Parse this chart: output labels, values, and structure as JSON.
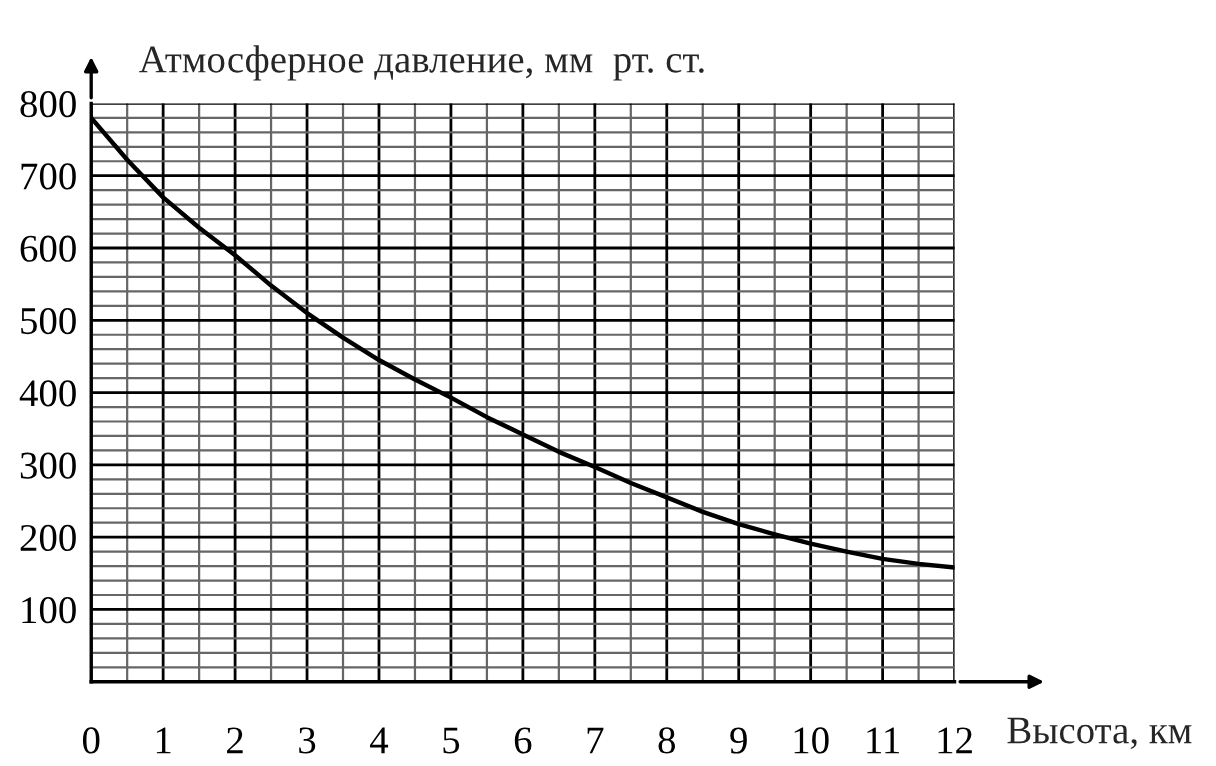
{
  "chart_data": {
    "type": "line",
    "ylabel": "Атмосферное давление, мм  рт. ст.",
    "xlabel": "Высота, км",
    "x": [
      0,
      0.5,
      1,
      1.5,
      2,
      2.5,
      3,
      3.5,
      4,
      4.5,
      5,
      5.5,
      6,
      6.5,
      7,
      7.5,
      8,
      8.5,
      9,
      9.5,
      10,
      10.5,
      11,
      11.5,
      12
    ],
    "series": [
      {
        "color": "#000000",
        "values": [
          780,
          722,
          670,
          628,
          590,
          548,
          510,
          476,
          445,
          418,
          393,
          366,
          342,
          318,
          297,
          275,
          255,
          235,
          218,
          204,
          191,
          180,
          170,
          163,
          158
        ]
      }
    ],
    "xlim": [
      0,
      12
    ],
    "ylim": [
      0,
      800
    ],
    "xticks": [
      0,
      1,
      2,
      3,
      4,
      5,
      6,
      7,
      8,
      9,
      10,
      11,
      12
    ],
    "yticks": [
      100,
      200,
      300,
      400,
      500,
      600,
      700,
      800
    ],
    "grid": true,
    "marker": "none",
    "line_style": "solid"
  }
}
